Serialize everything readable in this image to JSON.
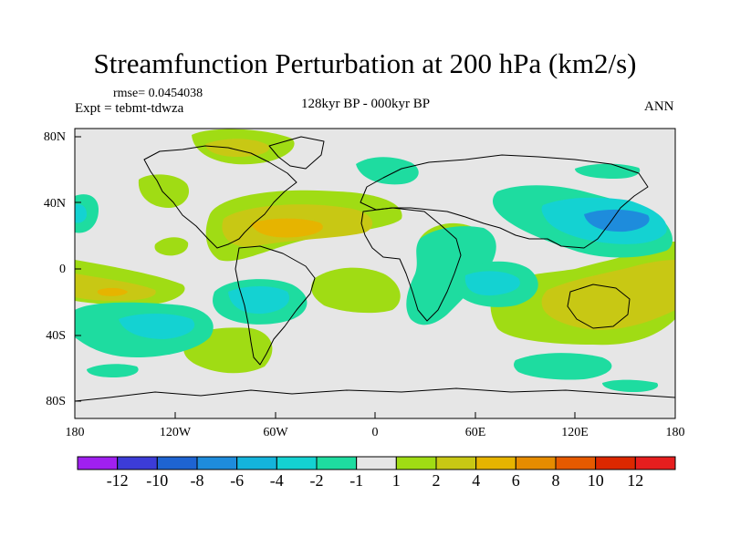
{
  "title": "Streamfunction Perturbation at 200 hPa (km2/s)",
  "rmse": "rmse= 0.0454038",
  "experiment": "Expt = tebmt-tdwza",
  "subtitle": "128kyr BP - 000kyr BP",
  "season": "ANN",
  "lat_labels": [
    "80N",
    "40N",
    "0",
    "40S",
    "80S"
  ],
  "lon_labels": [
    "180",
    "120W",
    "60W",
    "0",
    "60E",
    "120E",
    "180"
  ],
  "colorbar": {
    "labels": [
      "-12",
      "-10",
      "-8",
      "-6",
      "-4",
      "-2",
      "-1",
      "1",
      "2",
      "4",
      "6",
      "8",
      "10",
      "12"
    ],
    "colors": [
      "#a020f0",
      "#3c3cd8",
      "#1e64d2",
      "#1e8cdc",
      "#14b4dc",
      "#14d2d2",
      "#1edca0",
      "#e6e6e6",
      "#a0dc14",
      "#c8c814",
      "#e6b400",
      "#e68c00",
      "#e65a00",
      "#dc2800",
      "#e61e1e"
    ]
  },
  "colors": {
    "background": "#e6e6e6",
    "coast": "#000000"
  }
}
